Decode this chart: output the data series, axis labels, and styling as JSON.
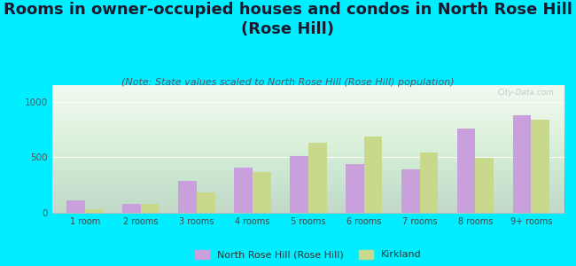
{
  "title": "Rooms in owner-occupied houses and condos in North Rose Hill\n(Rose Hill)",
  "subtitle": "(Note: State values scaled to North Rose Hill (Rose Hill) population)",
  "categories": [
    "1 room",
    "2 rooms",
    "3 rooms",
    "4 rooms",
    "5 rooms",
    "6 rooms",
    "7 rooms",
    "8 rooms",
    "9+ rooms"
  ],
  "north_rose_hill": [
    110,
    80,
    285,
    405,
    510,
    440,
    390,
    760,
    880
  ],
  "kirkland": [
    30,
    80,
    185,
    370,
    630,
    690,
    540,
    495,
    840
  ],
  "color_nrh": "#c9a0dc",
  "color_kirkland": "#c8d98c",
  "legend_nrh": "North Rose Hill (Rose Hill)",
  "legend_kirkland": "Kirkland",
  "yticks": [
    0,
    500,
    1000
  ],
  "ylim": [
    0,
    1150
  ],
  "bg_outer": "#00eeff",
  "bg_chart_top": "#e8f5e8",
  "bg_chart_bottom": "#f5fff5",
  "title_fontsize": 13,
  "subtitle_fontsize": 8,
  "watermark": "City-Data.com"
}
